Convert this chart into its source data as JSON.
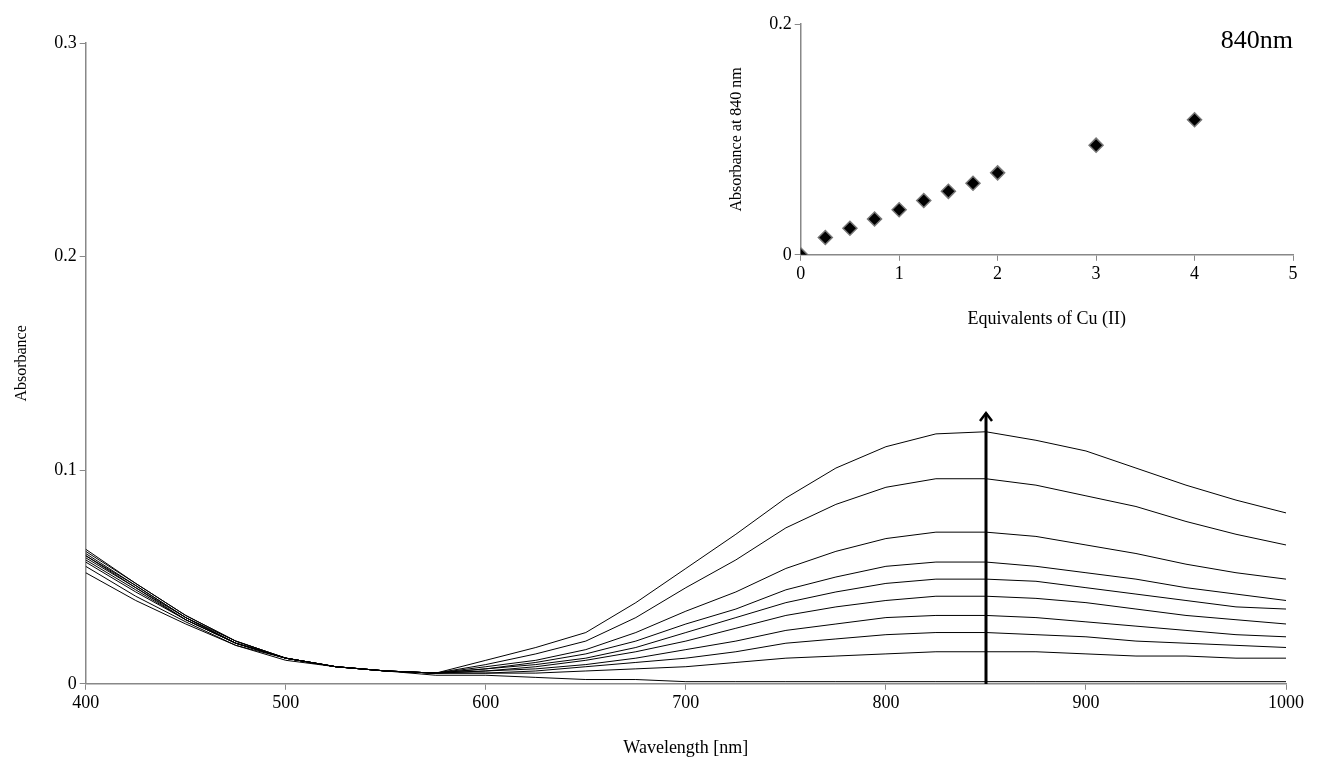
{
  "chart_data": [
    {
      "type": "line",
      "xlabel": "Wavelength [nm]",
      "ylabel": "Absorbance",
      "x": [
        400,
        425,
        450,
        475,
        500,
        525,
        550,
        575,
        600,
        625,
        650,
        675,
        700,
        725,
        750,
        775,
        800,
        825,
        850,
        875,
        900,
        925,
        950,
        975,
        1000
      ],
      "xlim": [
        400,
        1000
      ],
      "xticks": [
        400,
        500,
        600,
        700,
        800,
        900,
        1000
      ],
      "ylim": [
        0,
        0.3
      ],
      "yticks": [
        0,
        0.1,
        0.2,
        0.3
      ],
      "series": [
        {
          "color": "#000000",
          "values": [
            0.063,
            0.047,
            0.032,
            0.02,
            0.012,
            0.008,
            0.006,
            0.005,
            0.011,
            0.017,
            0.024,
            0.038,
            0.054,
            0.07,
            0.087,
            0.101,
            0.111,
            0.117,
            0.118,
            0.114,
            0.109,
            0.101,
            0.093,
            0.086,
            0.08
          ]
        },
        {
          "color": "#000000",
          "values": [
            0.062,
            0.047,
            0.032,
            0.02,
            0.012,
            0.008,
            0.006,
            0.005,
            0.009,
            0.014,
            0.02,
            0.031,
            0.045,
            0.058,
            0.073,
            0.084,
            0.092,
            0.096,
            0.096,
            0.093,
            0.088,
            0.083,
            0.076,
            0.07,
            0.065
          ]
        },
        {
          "color": "#000000",
          "values": [
            0.061,
            0.046,
            0.031,
            0.02,
            0.012,
            0.008,
            0.006,
            0.005,
            0.008,
            0.011,
            0.016,
            0.024,
            0.034,
            0.043,
            0.054,
            0.062,
            0.068,
            0.071,
            0.071,
            0.069,
            0.065,
            0.061,
            0.056,
            0.052,
            0.049
          ]
        },
        {
          "color": "#000000",
          "values": [
            0.06,
            0.046,
            0.031,
            0.019,
            0.012,
            0.008,
            0.006,
            0.005,
            0.007,
            0.01,
            0.014,
            0.02,
            0.028,
            0.035,
            0.044,
            0.05,
            0.055,
            0.057,
            0.057,
            0.055,
            0.052,
            0.049,
            0.045,
            0.042,
            0.039
          ]
        },
        {
          "color": "#000000",
          "values": [
            0.06,
            0.045,
            0.031,
            0.019,
            0.012,
            0.008,
            0.006,
            0.005,
            0.007,
            0.009,
            0.012,
            0.017,
            0.024,
            0.031,
            0.038,
            0.043,
            0.047,
            0.049,
            0.049,
            0.048,
            0.045,
            0.042,
            0.039,
            0.036,
            0.035
          ]
        },
        {
          "color": "#000000",
          "values": [
            0.059,
            0.045,
            0.03,
            0.019,
            0.012,
            0.008,
            0.006,
            0.005,
            0.006,
            0.008,
            0.011,
            0.015,
            0.02,
            0.026,
            0.032,
            0.036,
            0.039,
            0.041,
            0.041,
            0.04,
            0.038,
            0.035,
            0.032,
            0.03,
            0.028
          ]
        },
        {
          "color": "#000000",
          "values": [
            0.058,
            0.044,
            0.03,
            0.019,
            0.012,
            0.008,
            0.006,
            0.005,
            0.006,
            0.007,
            0.009,
            0.012,
            0.016,
            0.02,
            0.025,
            0.028,
            0.031,
            0.032,
            0.032,
            0.031,
            0.029,
            0.027,
            0.025,
            0.023,
            0.022
          ]
        },
        {
          "color": "#000000",
          "values": [
            0.057,
            0.043,
            0.03,
            0.019,
            0.012,
            0.008,
            0.006,
            0.005,
            0.005,
            0.006,
            0.008,
            0.01,
            0.012,
            0.015,
            0.019,
            0.021,
            0.023,
            0.024,
            0.024,
            0.023,
            0.022,
            0.02,
            0.019,
            0.018,
            0.017
          ]
        },
        {
          "color": "#000000",
          "values": [
            0.055,
            0.041,
            0.029,
            0.018,
            0.012,
            0.008,
            0.006,
            0.005,
            0.005,
            0.005,
            0.006,
            0.007,
            0.008,
            0.01,
            0.012,
            0.013,
            0.014,
            0.015,
            0.015,
            0.015,
            0.014,
            0.013,
            0.013,
            0.012,
            0.012
          ]
        },
        {
          "color": "#000000",
          "values": [
            0.052,
            0.039,
            0.028,
            0.018,
            0.011,
            0.008,
            0.006,
            0.004,
            0.004,
            0.003,
            0.002,
            0.002,
            0.001,
            0.001,
            0.001,
            0.001,
            0.001,
            0.001,
            0.001,
            0.001,
            0.001,
            0.001,
            0.001,
            0.001,
            0.001
          ]
        }
      ]
    },
    {
      "type": "scatter",
      "title": "840nm",
      "xlabel": "Equivalents of Cu (II)",
      "ylabel": "Absorbance at 840 nm",
      "x": [
        0,
        0.25,
        0.5,
        0.75,
        1,
        1.25,
        1.5,
        1.75,
        2,
        3,
        4
      ],
      "values": [
        0,
        0.015,
        0.023,
        0.031,
        0.039,
        0.047,
        0.055,
        0.062,
        0.071,
        0.095,
        0.117
      ],
      "color": "#000000",
      "marker": "diamond",
      "xlim": [
        0,
        5
      ],
      "xticks": [
        0,
        1,
        2,
        3,
        4,
        5
      ],
      "ylim": [
        0,
        0.2
      ],
      "yticks": [
        0,
        0.2
      ]
    }
  ]
}
